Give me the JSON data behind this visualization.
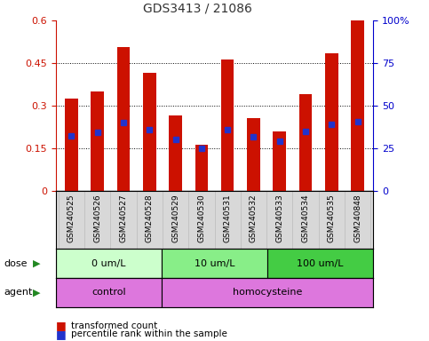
{
  "title": "GDS3413 / 21086",
  "samples": [
    "GSM240525",
    "GSM240526",
    "GSM240527",
    "GSM240528",
    "GSM240529",
    "GSM240530",
    "GSM240531",
    "GSM240532",
    "GSM240533",
    "GSM240534",
    "GSM240535",
    "GSM240848"
  ],
  "red_values": [
    0.325,
    0.35,
    0.505,
    0.415,
    0.265,
    0.163,
    0.462,
    0.255,
    0.21,
    0.34,
    0.485,
    0.6
  ],
  "blue_values": [
    0.195,
    0.205,
    0.24,
    0.215,
    0.18,
    0.15,
    0.215,
    0.19,
    0.175,
    0.21,
    0.235,
    0.245
  ],
  "ylim_left": [
    0,
    0.6
  ],
  "ylim_right": [
    0,
    100
  ],
  "yticks_left": [
    0,
    0.15,
    0.3,
    0.45,
    0.6
  ],
  "yticks_right": [
    0,
    25,
    50,
    75,
    100
  ],
  "bar_color": "#cc1100",
  "dot_color": "#2233cc",
  "dose_labels": [
    "0 um/L",
    "10 um/L",
    "100 um/L"
  ],
  "dose_starts": [
    0,
    4,
    8
  ],
  "dose_ends": [
    4,
    8,
    12
  ],
  "dose_colors": [
    "#ccffcc",
    "#88ee88",
    "#44cc44"
  ],
  "agent_labels": [
    "control",
    "homocysteine"
  ],
  "agent_starts": [
    0,
    4
  ],
  "agent_ends": [
    4,
    12
  ],
  "agent_color": "#dd77dd",
  "left_axis_color": "#cc1100",
  "right_axis_color": "#0000cc",
  "title_color": "#333333"
}
